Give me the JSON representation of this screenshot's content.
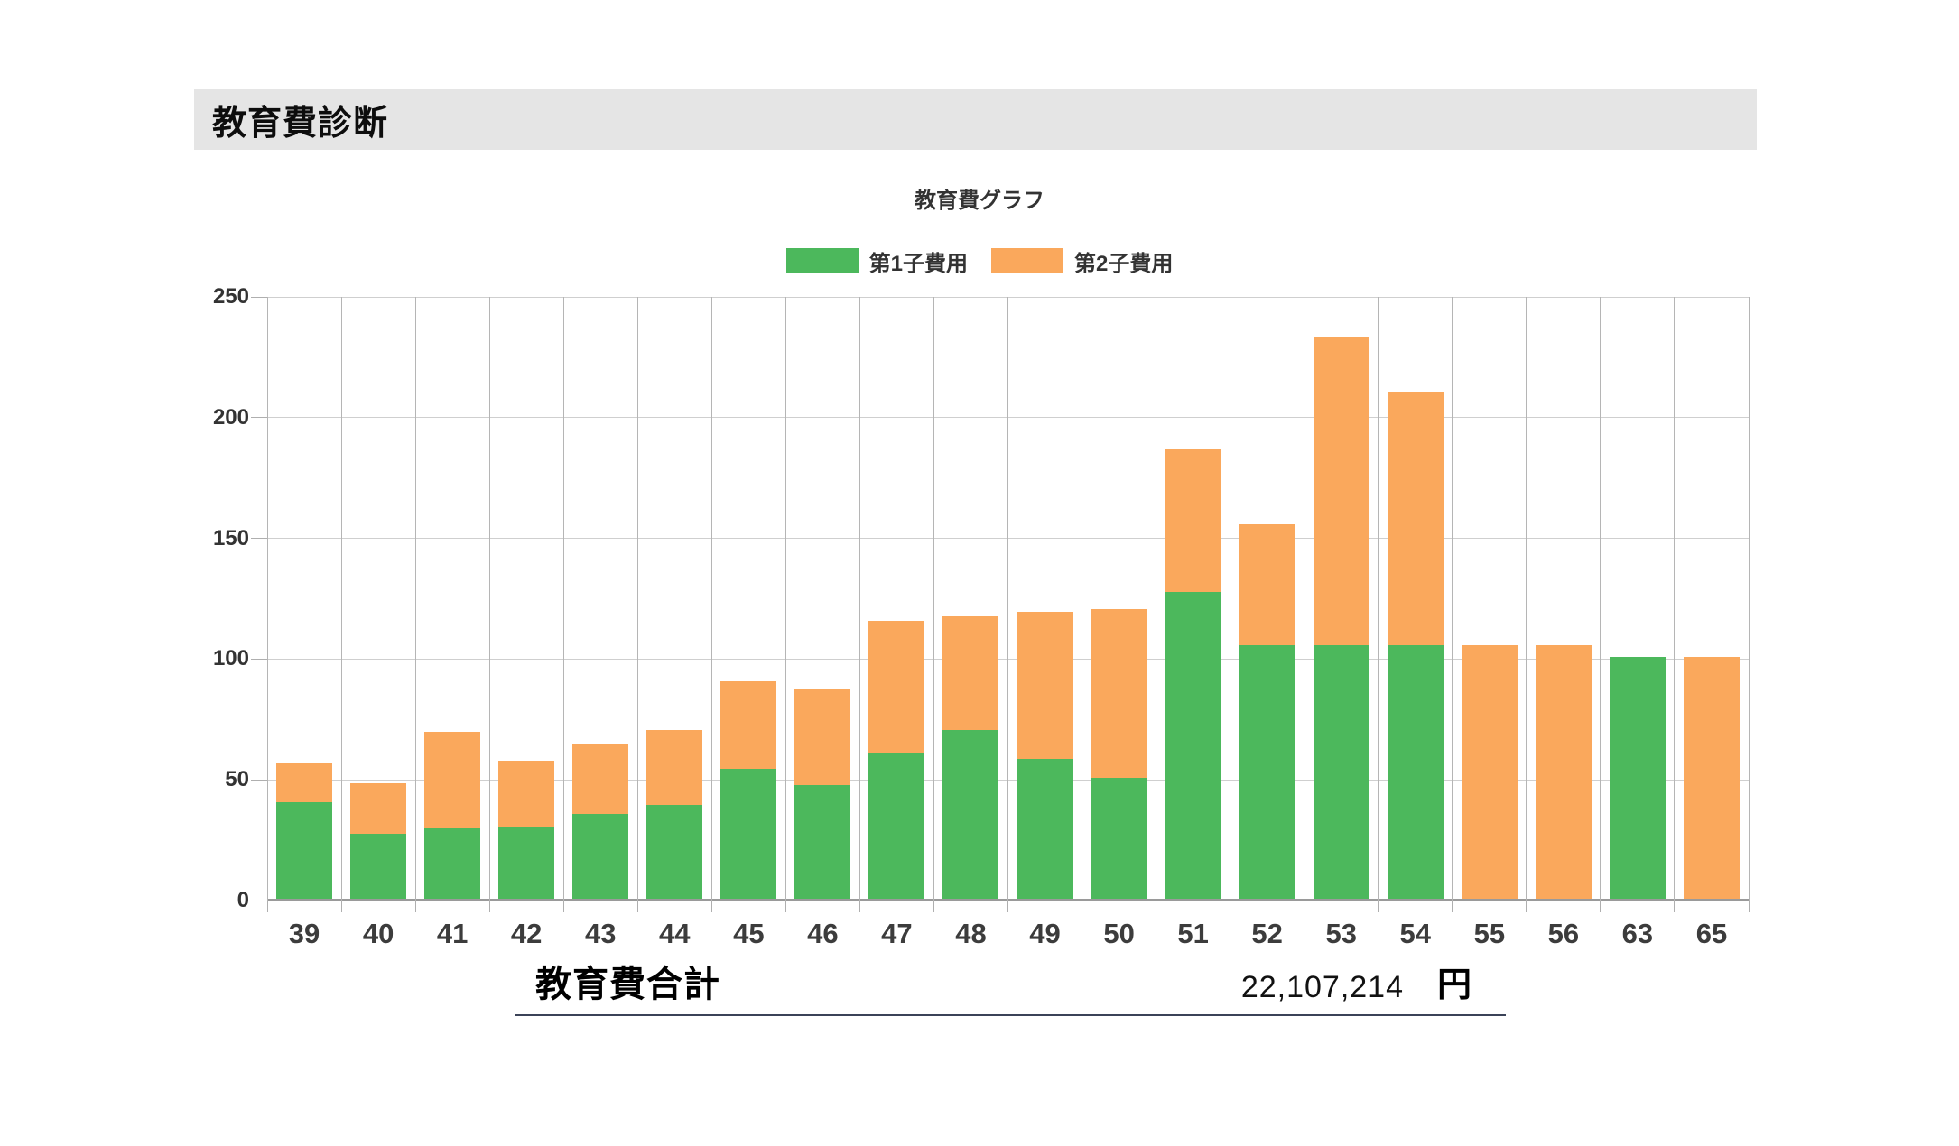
{
  "header": {
    "title": "教育費診断"
  },
  "chart_data": {
    "type": "bar",
    "stacked": true,
    "title": "教育費グラフ",
    "xlabel": "",
    "ylabel": "",
    "ylim": [
      0,
      250
    ],
    "ytick_step": 50,
    "grid": true,
    "legend_position": "top",
    "categories": [
      "39",
      "40",
      "41",
      "42",
      "43",
      "44",
      "45",
      "46",
      "47",
      "48",
      "49",
      "50",
      "51",
      "52",
      "53",
      "54",
      "55",
      "56",
      "63",
      "65"
    ],
    "series": [
      {
        "id": "first-child",
        "name": "第1子費用",
        "color": "#4cb85c",
        "values": [
          40,
          27,
          29,
          30,
          35,
          39,
          54,
          47,
          60,
          70,
          58,
          50,
          127,
          105,
          105,
          105,
          0,
          0,
          100,
          0
        ]
      },
      {
        "id": "second-child",
        "name": "第2子費用",
        "color": "#faa85c",
        "values": [
          16,
          21,
          40,
          27,
          29,
          31,
          36,
          40,
          55,
          47,
          61,
          70,
          59,
          50,
          128,
          105,
          105,
          105,
          0,
          100
        ]
      }
    ],
    "totals": [
      56,
      48,
      69,
      57,
      64,
      70,
      90,
      87,
      115,
      117,
      119,
      120,
      186,
      155,
      233,
      210,
      105,
      105,
      100,
      100
    ]
  },
  "total": {
    "label": "教育費合計",
    "value": "22,107,214",
    "unit": "円"
  }
}
